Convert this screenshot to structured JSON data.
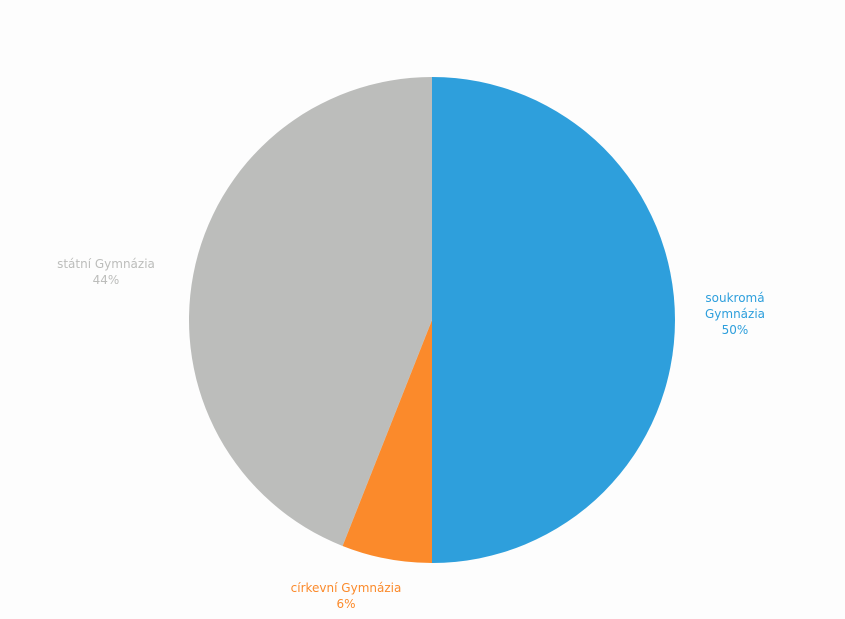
{
  "chart_data": {
    "type": "pie",
    "title": "",
    "start_angle_deg": 0,
    "direction": "clockwise",
    "slices": [
      {
        "label": "soukromá Gymnázia",
        "label_lines": [
          "soukromá",
          "Gymnázia"
        ],
        "value": 50,
        "value_label": "50%",
        "color": "#2e9fdc"
      },
      {
        "label": "církevní Gymnázia",
        "label_lines": [
          "církevní Gymnázia"
        ],
        "value": 6,
        "value_label": "6%",
        "color": "#fb8a2b"
      },
      {
        "label": "státní Gymnázia",
        "label_lines": [
          "státní Gymnázia"
        ],
        "value": 44,
        "value_label": "44%",
        "color": "#bcbdbb"
      }
    ],
    "label_color_source": "slice"
  }
}
